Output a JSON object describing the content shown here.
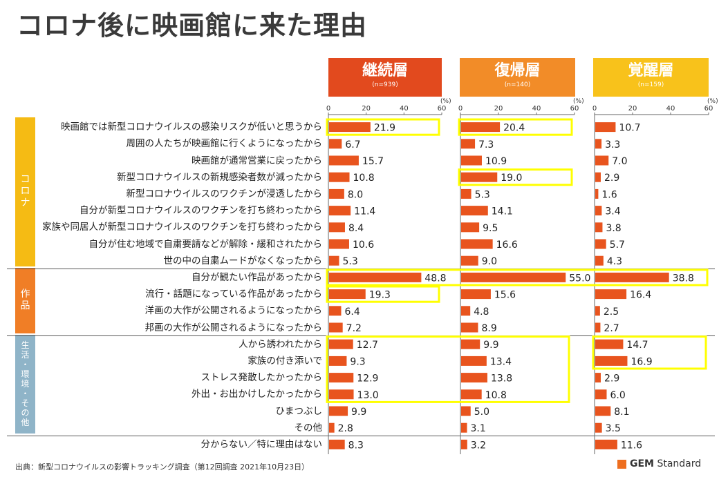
{
  "title": "コロナ後に映画館に来た理由",
  "unit": "(%)",
  "source": "出典：新型コロナウイルスの影響トラッキング調査（第12回調査 2021年10月23日）",
  "logo": {
    "brand": "GEM",
    "suffix": " Standard"
  },
  "colors": {
    "bar": "#e8541e",
    "highlight": "#ffff00",
    "panel1": "#e24a1e",
    "panel2": "#f28c28",
    "panel3": "#f8c21b",
    "group_corona": "#f5bb14",
    "group_works": "#f07e26",
    "group_life": "#8fb4c8"
  },
  "groups": [
    {
      "id": "corona",
      "label": "コロナ",
      "rows": [
        0,
        8
      ],
      "color_key": "group_corona"
    },
    {
      "id": "works",
      "label": "作品",
      "rows": [
        9,
        12
      ],
      "color_key": "group_works"
    },
    {
      "id": "life",
      "label": "生活・環境・その他",
      "rows": [
        13,
        18
      ],
      "color_key": "group_life"
    }
  ],
  "chart_data": {
    "type": "bar",
    "orientation": "horizontal",
    "xlim": [
      0,
      60
    ],
    "ticks": [
      0,
      20,
      40,
      60
    ],
    "categories": [
      "映画館では新型コロナウイルスの感染リスクが低いと思うから",
      "周囲の人たちが映画館に行くようになったから",
      "映画館が通常営業に戻ったから",
      "新型コロナウイルスの新規感染者数が減ったから",
      "新型コロナウイルスのワクチンが浸透したから",
      "自分が新型コロナウイルスのワクチンを打ち終わったから",
      "家族や同居人が新型コロナウイルスのワクチンを打ち終わったから",
      "自分が住む地域で自粛要請などが解除・緩和されたから",
      "世の中の自粛ムードがなくなったから",
      "自分が観たい作品があったから",
      "流行・話題になっている作品があったから",
      "洋画の大作が公開されるようになったから",
      "邦画の大作が公開されるようになったから",
      "人から誘われたから",
      "家族の付き添いで",
      "ストレス発散したかったから",
      "外出・お出かけしたかったから",
      "ひまつぶし",
      "その他",
      "分からない／特に理由はない"
    ],
    "series": [
      {
        "name": "継続層",
        "n": "(n=939)",
        "values": [
          21.9,
          6.7,
          15.7,
          10.8,
          8.0,
          11.4,
          8.4,
          10.6,
          5.3,
          48.8,
          19.3,
          6.4,
          7.2,
          12.7,
          9.3,
          12.9,
          13.0,
          9.9,
          2.8,
          8.3
        ]
      },
      {
        "name": "復帰層",
        "n": "(n=140)",
        "values": [
          20.4,
          7.3,
          10.9,
          19.0,
          5.3,
          14.1,
          9.5,
          16.6,
          9.0,
          55.0,
          15.6,
          4.8,
          8.9,
          9.9,
          13.4,
          13.8,
          10.8,
          5.0,
          3.1,
          3.2
        ]
      },
      {
        "name": "覚醒層",
        "n": "(n=159)",
        "values": [
          10.7,
          3.3,
          7.0,
          2.9,
          1.6,
          3.4,
          3.8,
          5.7,
          4.3,
          38.8,
          16.4,
          2.5,
          2.7,
          14.7,
          16.9,
          2.9,
          6.0,
          8.1,
          3.5,
          11.6
        ]
      }
    ],
    "highlights": [
      {
        "series": 0,
        "rows": [
          0,
          0
        ]
      },
      {
        "series": 1,
        "rows": [
          0,
          0
        ]
      },
      {
        "series": 1,
        "rows": [
          3,
          3
        ]
      },
      {
        "series": "all",
        "rows": [
          9,
          9
        ]
      },
      {
        "series": 0,
        "rows": [
          10,
          10
        ]
      },
      {
        "series": [
          0,
          1
        ],
        "rows": [
          13,
          16
        ]
      },
      {
        "series": 2,
        "rows": [
          13,
          14
        ]
      }
    ]
  }
}
